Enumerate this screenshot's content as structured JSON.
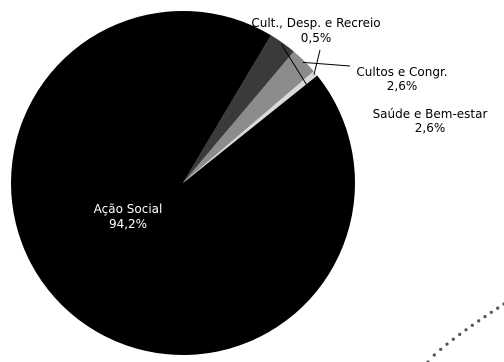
{
  "chart_data": {
    "type": "pie",
    "title": "",
    "slices": [
      {
        "label": "Ação Social",
        "value": 94.2,
        "value_label": "94,2%",
        "color": "#000000",
        "text_color": "#ffffff"
      },
      {
        "label": "Saúde e Bem-estar",
        "value": 2.6,
        "value_label": "2,6%",
        "color": "#3a3a3a",
        "text_color": "#000000"
      },
      {
        "label": "Cultos e Congr.",
        "value": 2.6,
        "value_label": "2,6%",
        "color": "#8c8c8c",
        "text_color": "#000000"
      },
      {
        "label": "Cult., Desp. e Recreio",
        "value": 0.5,
        "value_label": "0,5%",
        "color": "#d9d9d9",
        "text_color": "#000000"
      }
    ]
  },
  "decoration": {
    "dotted_arc_color": "#555555"
  }
}
